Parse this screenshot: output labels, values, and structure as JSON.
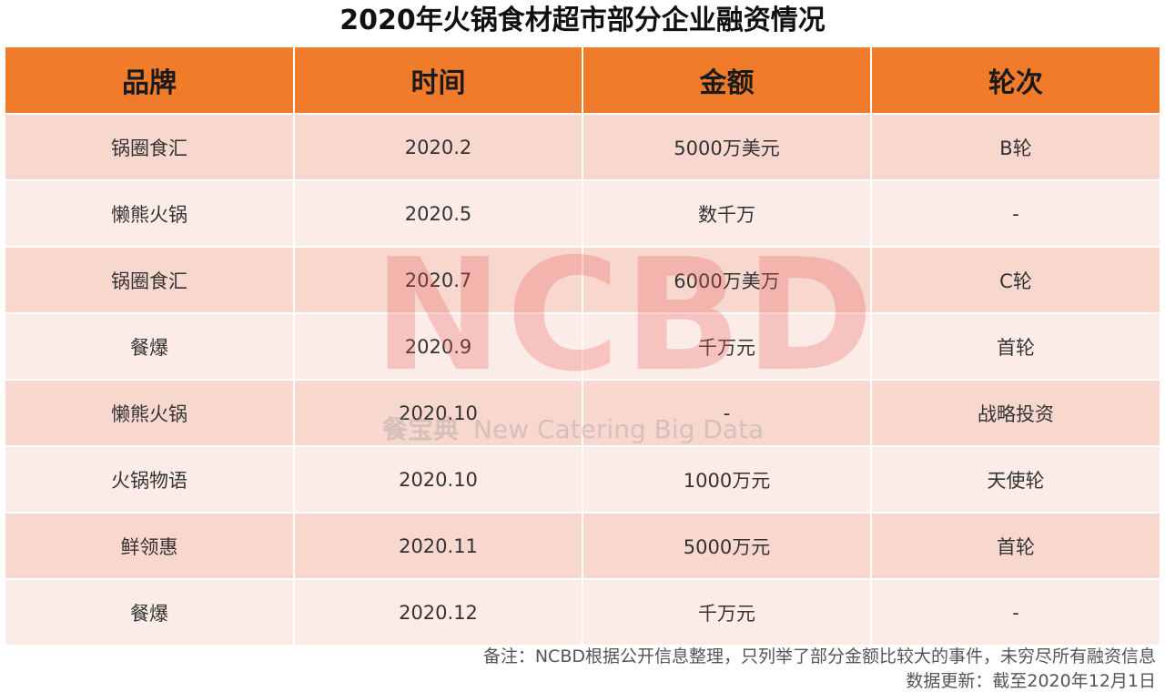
{
  "title": "2020年火锅食材超市部分企业融资情况",
  "table": {
    "headers": [
      "品牌",
      "时间",
      "金额",
      "轮次"
    ],
    "rows": [
      [
        "锅圈食汇",
        "2020.2",
        "5000万美元",
        "B轮"
      ],
      [
        "懒熊火锅",
        "2020.5",
        "数千万",
        "-"
      ],
      [
        "锅圈食汇",
        "2020.7",
        "6000万美万",
        "C轮"
      ],
      [
        "餐爆",
        "2020.9",
        "千万元",
        "首轮"
      ],
      [
        "懒熊火锅",
        "2020.10",
        "-",
        "战略投资"
      ],
      [
        "火锅物语",
        "2020.10",
        "1000万元",
        "天使轮"
      ],
      [
        "鲜领惠",
        "2020.11",
        "5000万元",
        "首轮"
      ],
      [
        "餐爆",
        "2020.12",
        "千万元",
        "-"
      ]
    ]
  },
  "watermark": {
    "main": "NCBD",
    "sub_cn": "餐宝典",
    "sub_en": "New Catering Big Data"
  },
  "notes": {
    "line1": "备注：NCBD根据公开信息整理，只列举了部分金额比较大的事件，未穷尽所有融资信息",
    "line2": "数据更新：截至2020年12月1日"
  },
  "colors": {
    "header_bg": "#f07b2a",
    "row_odd": "#f8d7cf",
    "row_even": "#fcece8"
  }
}
